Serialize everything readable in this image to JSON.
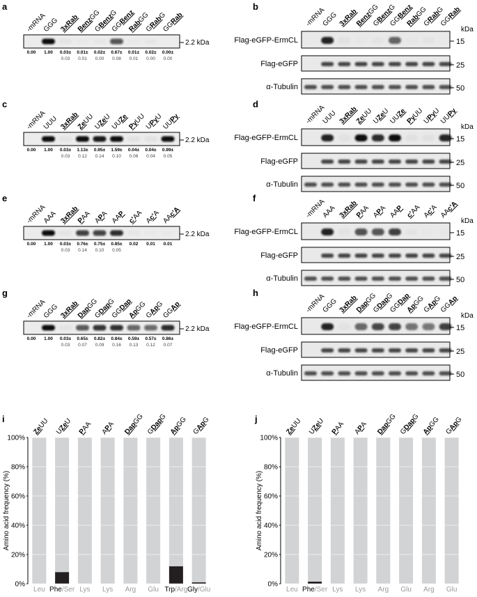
{
  "small_marker": "2.2 kDa",
  "kda": "kDa",
  "blot_rows": [
    "Flag-eGFP-ErmCL",
    "Flag-eGFP",
    "α-Tubulin"
  ],
  "blot_markers": [
    "15",
    "25",
    "50"
  ],
  "blots": [
    {
      "letter_left": "a",
      "letter_right": "b",
      "lanes": [
        [
          {
            "text": "-mRNA"
          }
        ],
        [
          {
            "text": "GGG"
          }
        ],
        [
          {
            "text": "3xRab",
            "style": "emph"
          }
        ],
        [
          {
            "text": "Benz",
            "style": "emph"
          },
          {
            "text": "GG"
          }
        ],
        [
          {
            "text": "G"
          },
          {
            "text": "Benz",
            "style": "emph"
          },
          {
            "text": "G"
          }
        ],
        [
          {
            "text": "GG"
          },
          {
            "text": "Benz",
            "style": "emph"
          }
        ],
        [
          {
            "text": "Rab",
            "style": "emph"
          },
          {
            "text": "GG"
          }
        ],
        [
          {
            "text": "G"
          },
          {
            "text": "Rab",
            "style": "emph"
          },
          {
            "text": "G"
          }
        ],
        [
          {
            "text": "GG"
          },
          {
            "text": "Rab",
            "style": "emph"
          }
        ]
      ],
      "means": [
        "0.00",
        "1.00",
        "0.03±",
        "0.01±",
        "0.02±",
        "0.67±",
        "0.01±",
        "0.02±",
        "0.00±"
      ],
      "sds": [
        null,
        null,
        "0.03",
        "0.01",
        "0.00",
        "0.08",
        "0.01",
        "0.00",
        "0.00"
      ]
    },
    {
      "letter_left": "c",
      "letter_right": "d",
      "lanes": [
        [
          {
            "text": "-mRNA"
          }
        ],
        [
          {
            "text": "UUU"
          }
        ],
        [
          {
            "text": "3xRab",
            "style": "emph"
          }
        ],
        [
          {
            "text": "Ze",
            "style": "emph"
          },
          {
            "text": "UU"
          }
        ],
        [
          {
            "text": "U"
          },
          {
            "text": "Ze",
            "style": "emph"
          },
          {
            "text": "U"
          }
        ],
        [
          {
            "text": "UU"
          },
          {
            "text": "Ze",
            "style": "emph"
          }
        ],
        [
          {
            "text": "Py",
            "style": "emph"
          },
          {
            "text": "UU"
          }
        ],
        [
          {
            "text": "U"
          },
          {
            "text": "Py",
            "style": "emph"
          },
          {
            "text": "U"
          }
        ],
        [
          {
            "text": "UU"
          },
          {
            "text": "Py",
            "style": "emph"
          }
        ]
      ],
      "means": [
        "0.00",
        "1.00",
        "0.03±",
        "1.13±",
        "0.95±",
        "1.59±",
        "0.04±",
        "0.04±",
        "0.99±"
      ],
      "sds": [
        null,
        null,
        "0.03",
        "0.12",
        "0.14",
        "0.10",
        "0.06",
        "0.04",
        "0.05"
      ]
    },
    {
      "letter_left": "e",
      "letter_right": "f",
      "lanes": [
        [
          {
            "text": "-mRNA"
          }
        ],
        [
          {
            "text": "AAA"
          }
        ],
        [
          {
            "text": "3xRab",
            "style": "emph"
          }
        ],
        [
          {
            "text": "P",
            "style": "emph"
          },
          {
            "text": "AA"
          }
        ],
        [
          {
            "text": "A"
          },
          {
            "text": "P",
            "style": "emph"
          },
          {
            "text": "A"
          }
        ],
        [
          {
            "text": "AA"
          },
          {
            "text": "P",
            "style": "emph"
          }
        ],
        [
          {
            "text": "c'",
            "style": "emph"
          },
          {
            "text": "AA"
          }
        ],
        [
          {
            "text": "A"
          },
          {
            "text": "c'",
            "style": "emph"
          },
          {
            "text": "A"
          }
        ],
        [
          {
            "text": "AA"
          },
          {
            "text": "c'A",
            "style": "emph"
          }
        ]
      ],
      "means": [
        "0.00",
        "1.00",
        "0.03±",
        "0.76±",
        "0.75±",
        "0.85±",
        "0.02",
        "0.01",
        "0.01"
      ],
      "sds": [
        null,
        null,
        "0.03",
        "0.14",
        "0.10",
        "0.05",
        null,
        null,
        null
      ]
    },
    {
      "letter_left": "g",
      "letter_right": "h",
      "lanes": [
        [
          {
            "text": "-mRNA"
          }
        ],
        [
          {
            "text": "GGG"
          }
        ],
        [
          {
            "text": "3xRab",
            "style": "emph"
          }
        ],
        [
          {
            "text": "Dap",
            "style": "emph"
          },
          {
            "text": "GG"
          }
        ],
        [
          {
            "text": "G"
          },
          {
            "text": "Dap",
            "style": "emph"
          },
          {
            "text": "G"
          }
        ],
        [
          {
            "text": "GG"
          },
          {
            "text": "Dap",
            "style": "emph"
          }
        ],
        [
          {
            "text": "Ap",
            "style": "emph"
          },
          {
            "text": "GG"
          }
        ],
        [
          {
            "text": "G"
          },
          {
            "text": "Ap",
            "style": "emph"
          },
          {
            "text": "G"
          }
        ],
        [
          {
            "text": "GG"
          },
          {
            "text": "Ap",
            "style": "emph"
          }
        ]
      ],
      "means": [
        "0.00",
        "1.00",
        "0.03±",
        "0.65±",
        "0.82±",
        "0.84±",
        "0.59±",
        "0.57±",
        "0.86±"
      ],
      "sds": [
        null,
        null,
        "0.03",
        "0.07",
        "0.09",
        "0.16",
        "0.13",
        "0.12",
        "0.07"
      ]
    }
  ],
  "chart_data": [
    {
      "type": "bar",
      "stacked": true,
      "label": "i",
      "categories": [
        [
          {
            "text": "Ze",
            "style": "emph"
          },
          {
            "text": "UU"
          }
        ],
        [
          {
            "text": "U"
          },
          {
            "text": "Ze",
            "style": "emph"
          },
          {
            "text": "U"
          }
        ],
        [
          {
            "text": "P",
            "style": "emph"
          },
          {
            "text": "AA"
          }
        ],
        [
          {
            "text": "A"
          },
          {
            "text": "P",
            "style": "emph"
          },
          {
            "text": "A"
          }
        ],
        [
          {
            "text": "Dap",
            "style": "emph"
          },
          {
            "text": "GG"
          }
        ],
        [
          {
            "text": "G"
          },
          {
            "text": "Dap",
            "style": "emph"
          },
          {
            "text": "G"
          }
        ],
        [
          {
            "text": "Ap",
            "style": "emph"
          },
          {
            "text": "GG"
          }
        ],
        [
          {
            "text": "G"
          },
          {
            "text": "Ap",
            "style": "emph"
          },
          {
            "text": "G"
          }
        ]
      ],
      "x_labels": [
        [
          {
            "text": "Leu",
            "style": "muted"
          }
        ],
        [
          {
            "text": "Phe"
          },
          {
            "text": "/Ser",
            "style": "muted"
          }
        ],
        [
          {
            "text": "Lys",
            "style": "muted"
          }
        ],
        [
          {
            "text": "Lys",
            "style": "muted"
          }
        ],
        [
          {
            "text": "Arg",
            "style": "muted"
          }
        ],
        [
          {
            "text": "Glu",
            "style": "muted"
          }
        ],
        [
          {
            "text": "Trp"
          },
          {
            "text": "/Arg",
            "style": "muted"
          }
        ],
        [
          {
            "text": "Gly"
          },
          {
            "text": "/Glu",
            "style": "muted"
          }
        ]
      ],
      "ylabel": "Amino acid frequency (%)",
      "ylim": [
        0,
        100
      ],
      "yticks": [
        {
          "value": 0,
          "label": "0%"
        },
        {
          "value": 20,
          "label": "20%"
        },
        {
          "value": 40,
          "label": "40%"
        },
        {
          "value": 60,
          "label": "60%"
        },
        {
          "value": 80,
          "label": "80%"
        },
        {
          "value": 100,
          "label": "100%"
        }
      ],
      "grid": true,
      "series": [
        {
          "color": "#231f20",
          "values": [
            0,
            8,
            0,
            0,
            0,
            0,
            12,
            1
          ]
        },
        {
          "color": "#d1d3d4",
          "values": [
            100,
            92,
            100,
            100,
            100,
            100,
            88,
            99
          ]
        }
      ]
    },
    {
      "type": "bar",
      "stacked": true,
      "label": "j",
      "categories": [
        [
          {
            "text": "Ze",
            "style": "emph"
          },
          {
            "text": "UU"
          }
        ],
        [
          {
            "text": "U"
          },
          {
            "text": "Ze",
            "style": "emph"
          },
          {
            "text": "U"
          }
        ],
        [
          {
            "text": "P",
            "style": "emph"
          },
          {
            "text": "AA"
          }
        ],
        [
          {
            "text": "A"
          },
          {
            "text": "P",
            "style": "emph"
          },
          {
            "text": "A"
          }
        ],
        [
          {
            "text": "Dap",
            "style": "emph"
          },
          {
            "text": "GG"
          }
        ],
        [
          {
            "text": "G"
          },
          {
            "text": "Dap",
            "style": "emph"
          },
          {
            "text": "G"
          }
        ],
        [
          {
            "text": "Ap",
            "style": "emph"
          },
          {
            "text": "GG"
          }
        ],
        [
          {
            "text": "G"
          },
          {
            "text": "Ap",
            "style": "emph"
          },
          {
            "text": "G"
          }
        ]
      ],
      "x_labels": [
        [
          {
            "text": "Leu",
            "style": "muted"
          }
        ],
        [
          {
            "text": "Phe"
          },
          {
            "text": "/Ser",
            "style": "muted"
          }
        ],
        [
          {
            "text": "Lys",
            "style": "muted"
          }
        ],
        [
          {
            "text": "Lys",
            "style": "muted"
          }
        ],
        [
          {
            "text": "Arg",
            "style": "muted"
          }
        ],
        [
          {
            "text": "Glu",
            "style": "muted"
          }
        ],
        [
          {
            "text": "Arg",
            "style": "muted"
          }
        ],
        [
          {
            "text": "Glu",
            "style": "muted"
          }
        ]
      ],
      "ylabel": "Amino acid frequency (%)",
      "ylim": [
        0,
        100
      ],
      "yticks": [
        {
          "value": 0,
          "label": "0%"
        },
        {
          "value": 20,
          "label": "20%"
        },
        {
          "value": 40,
          "label": "40%"
        },
        {
          "value": 60,
          "label": "60%"
        },
        {
          "value": 80,
          "label": "80%"
        },
        {
          "value": 100,
          "label": "100%"
        }
      ],
      "grid": true,
      "series": [
        {
          "color": "#231f20",
          "values": [
            0,
            1.5,
            0,
            0,
            0,
            0,
            0,
            0
          ]
        },
        {
          "color": "#d1d3d4",
          "values": [
            100,
            98.5,
            100,
            100,
            100,
            100,
            100,
            100
          ]
        }
      ]
    }
  ]
}
